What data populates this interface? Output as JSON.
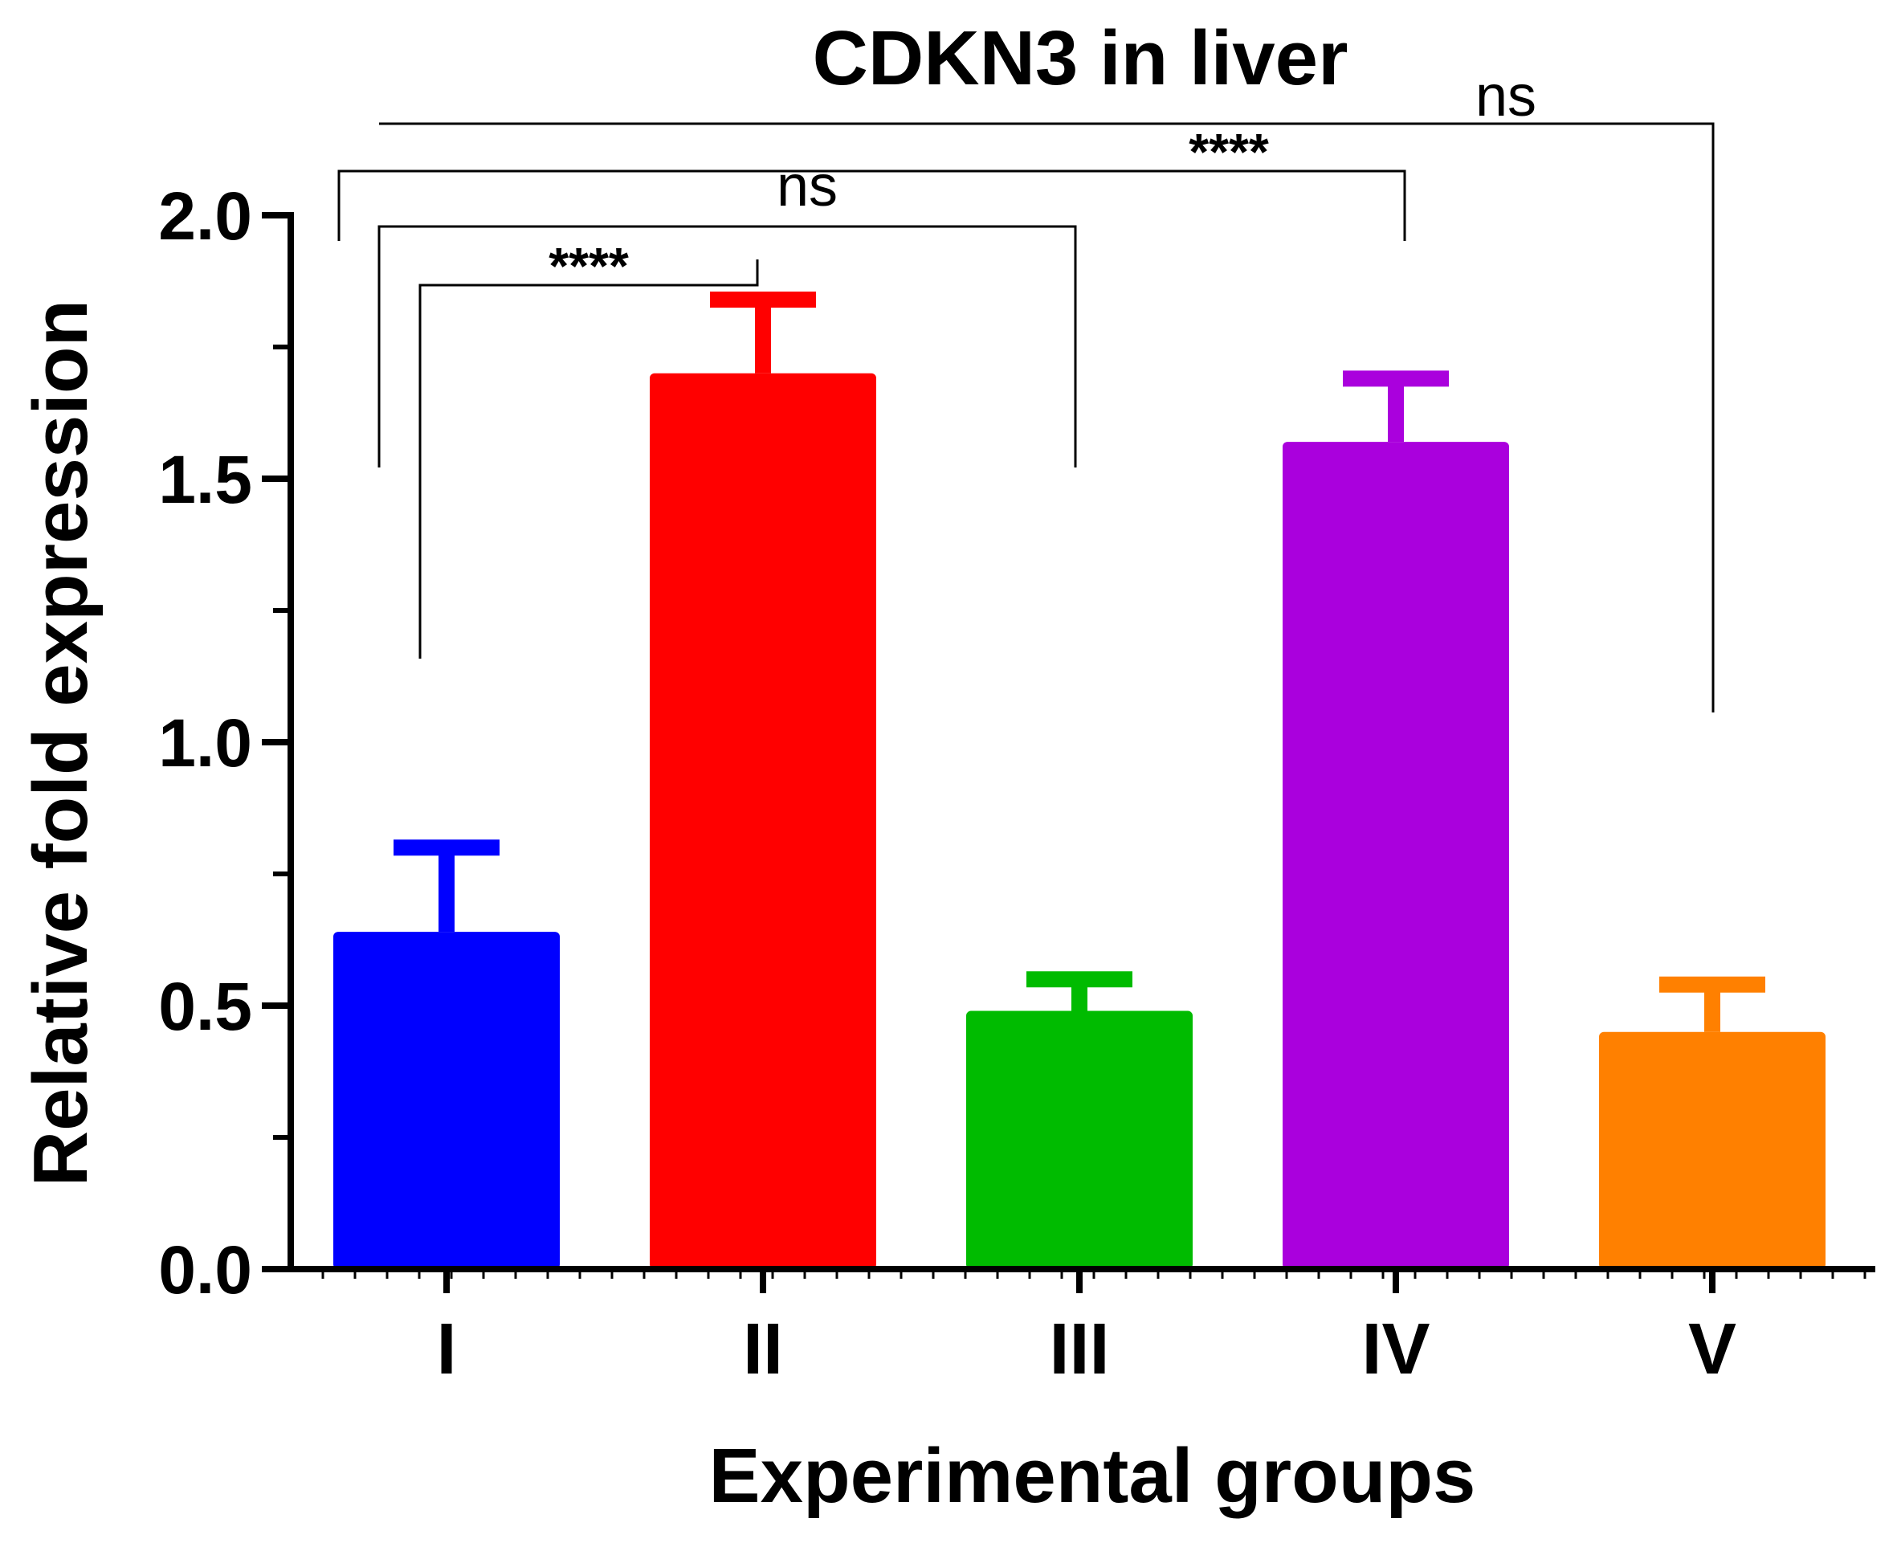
{
  "chart_data": {
    "type": "bar",
    "title": "CDKN3 in liver",
    "xlabel": "Experimental groups",
    "ylabel": "Relative fold expression",
    "ylim": [
      0,
      2.0
    ],
    "yticks": [
      "0.0",
      "0.5",
      "1.0",
      "1.5",
      "2.0"
    ],
    "categories": [
      "I",
      "II",
      "III",
      "IV",
      "V"
    ],
    "values": [
      0.64,
      1.7,
      0.49,
      1.57,
      0.45
    ],
    "errors": [
      0.16,
      0.14,
      0.06,
      0.12,
      0.09
    ],
    "colors": [
      "#0000ff",
      "#ff0000",
      "#00bb00",
      "#aa00dd",
      "#ff8000"
    ],
    "comparisons": [
      {
        "from": "I",
        "to": "II",
        "label": "****"
      },
      {
        "from": "I",
        "to": "III",
        "label": "ns"
      },
      {
        "from": "I",
        "to": "IV",
        "label": "****"
      },
      {
        "from": "I",
        "to": "V",
        "label": "ns"
      }
    ]
  }
}
